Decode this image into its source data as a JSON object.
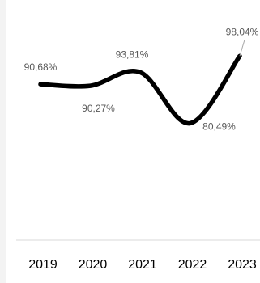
{
  "chart_data": {
    "type": "line",
    "categories": [
      "2019",
      "2020",
      "2021",
      "2022",
      "2023"
    ],
    "series": [
      {
        "values": [
          90.68,
          90.27,
          93.81,
          80.49,
          98.04
        ],
        "labels": [
          "90,68%",
          "90,27%",
          "93,81%",
          "80,49%",
          "98,04%"
        ],
        "color": "#000000"
      }
    ],
    "ylim": [
      50,
      100
    ],
    "grid": false,
    "legend": "none"
  }
}
